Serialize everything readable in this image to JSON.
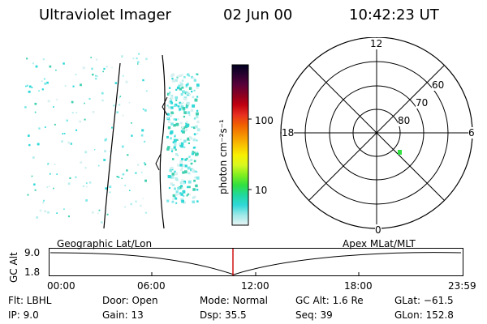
{
  "header": {
    "title": "Ultraviolet Imager",
    "date": "02 Jun 00",
    "time": "10:42:23 UT"
  },
  "colorbar": {
    "unit_label": "photon cm⁻²s⁻¹",
    "ticks": [
      "100",
      "10"
    ],
    "stops": [
      "#000020",
      "#2a0030",
      "#5a003a",
      "#8a0020",
      "#c00010",
      "#e83020",
      "#f06000",
      "#f59000",
      "#f8c000",
      "#f8f000",
      "#d8f820",
      "#80ee20",
      "#30e040",
      "#20d8a0",
      "#30d8d8",
      "#a0e8e8",
      "#e8f4f4"
    ]
  },
  "polar_plot": {
    "mlt_labels": [
      "12",
      "18",
      "6",
      "0"
    ],
    "lat_labels": [
      "60",
      "70",
      "80"
    ]
  },
  "timeline": {
    "axis_label": "GC Alt",
    "y_top": "9.0",
    "y_bottom": "1.8",
    "left_caption": "Geographic Lat/Lon",
    "right_caption": "Apex MLat/MLT",
    "x_ticks": [
      "00:00",
      "06:00",
      "12:00",
      "18:00",
      "23:59"
    ],
    "marker_color": "#cc0000"
  },
  "status": {
    "flt": "Flt:  LBHL",
    "ip": "IP:   9.0",
    "door": "Door:  Open",
    "gain": "Gain:  13",
    "mode": "Mode:  Normal",
    "dsp": "Dsp:     35.5",
    "gc_alt": "GC Alt:  1.6 Re",
    "seq": "Seq:  39",
    "glat": "GLat:  −61.5",
    "glon": "GLon:  152.8"
  }
}
